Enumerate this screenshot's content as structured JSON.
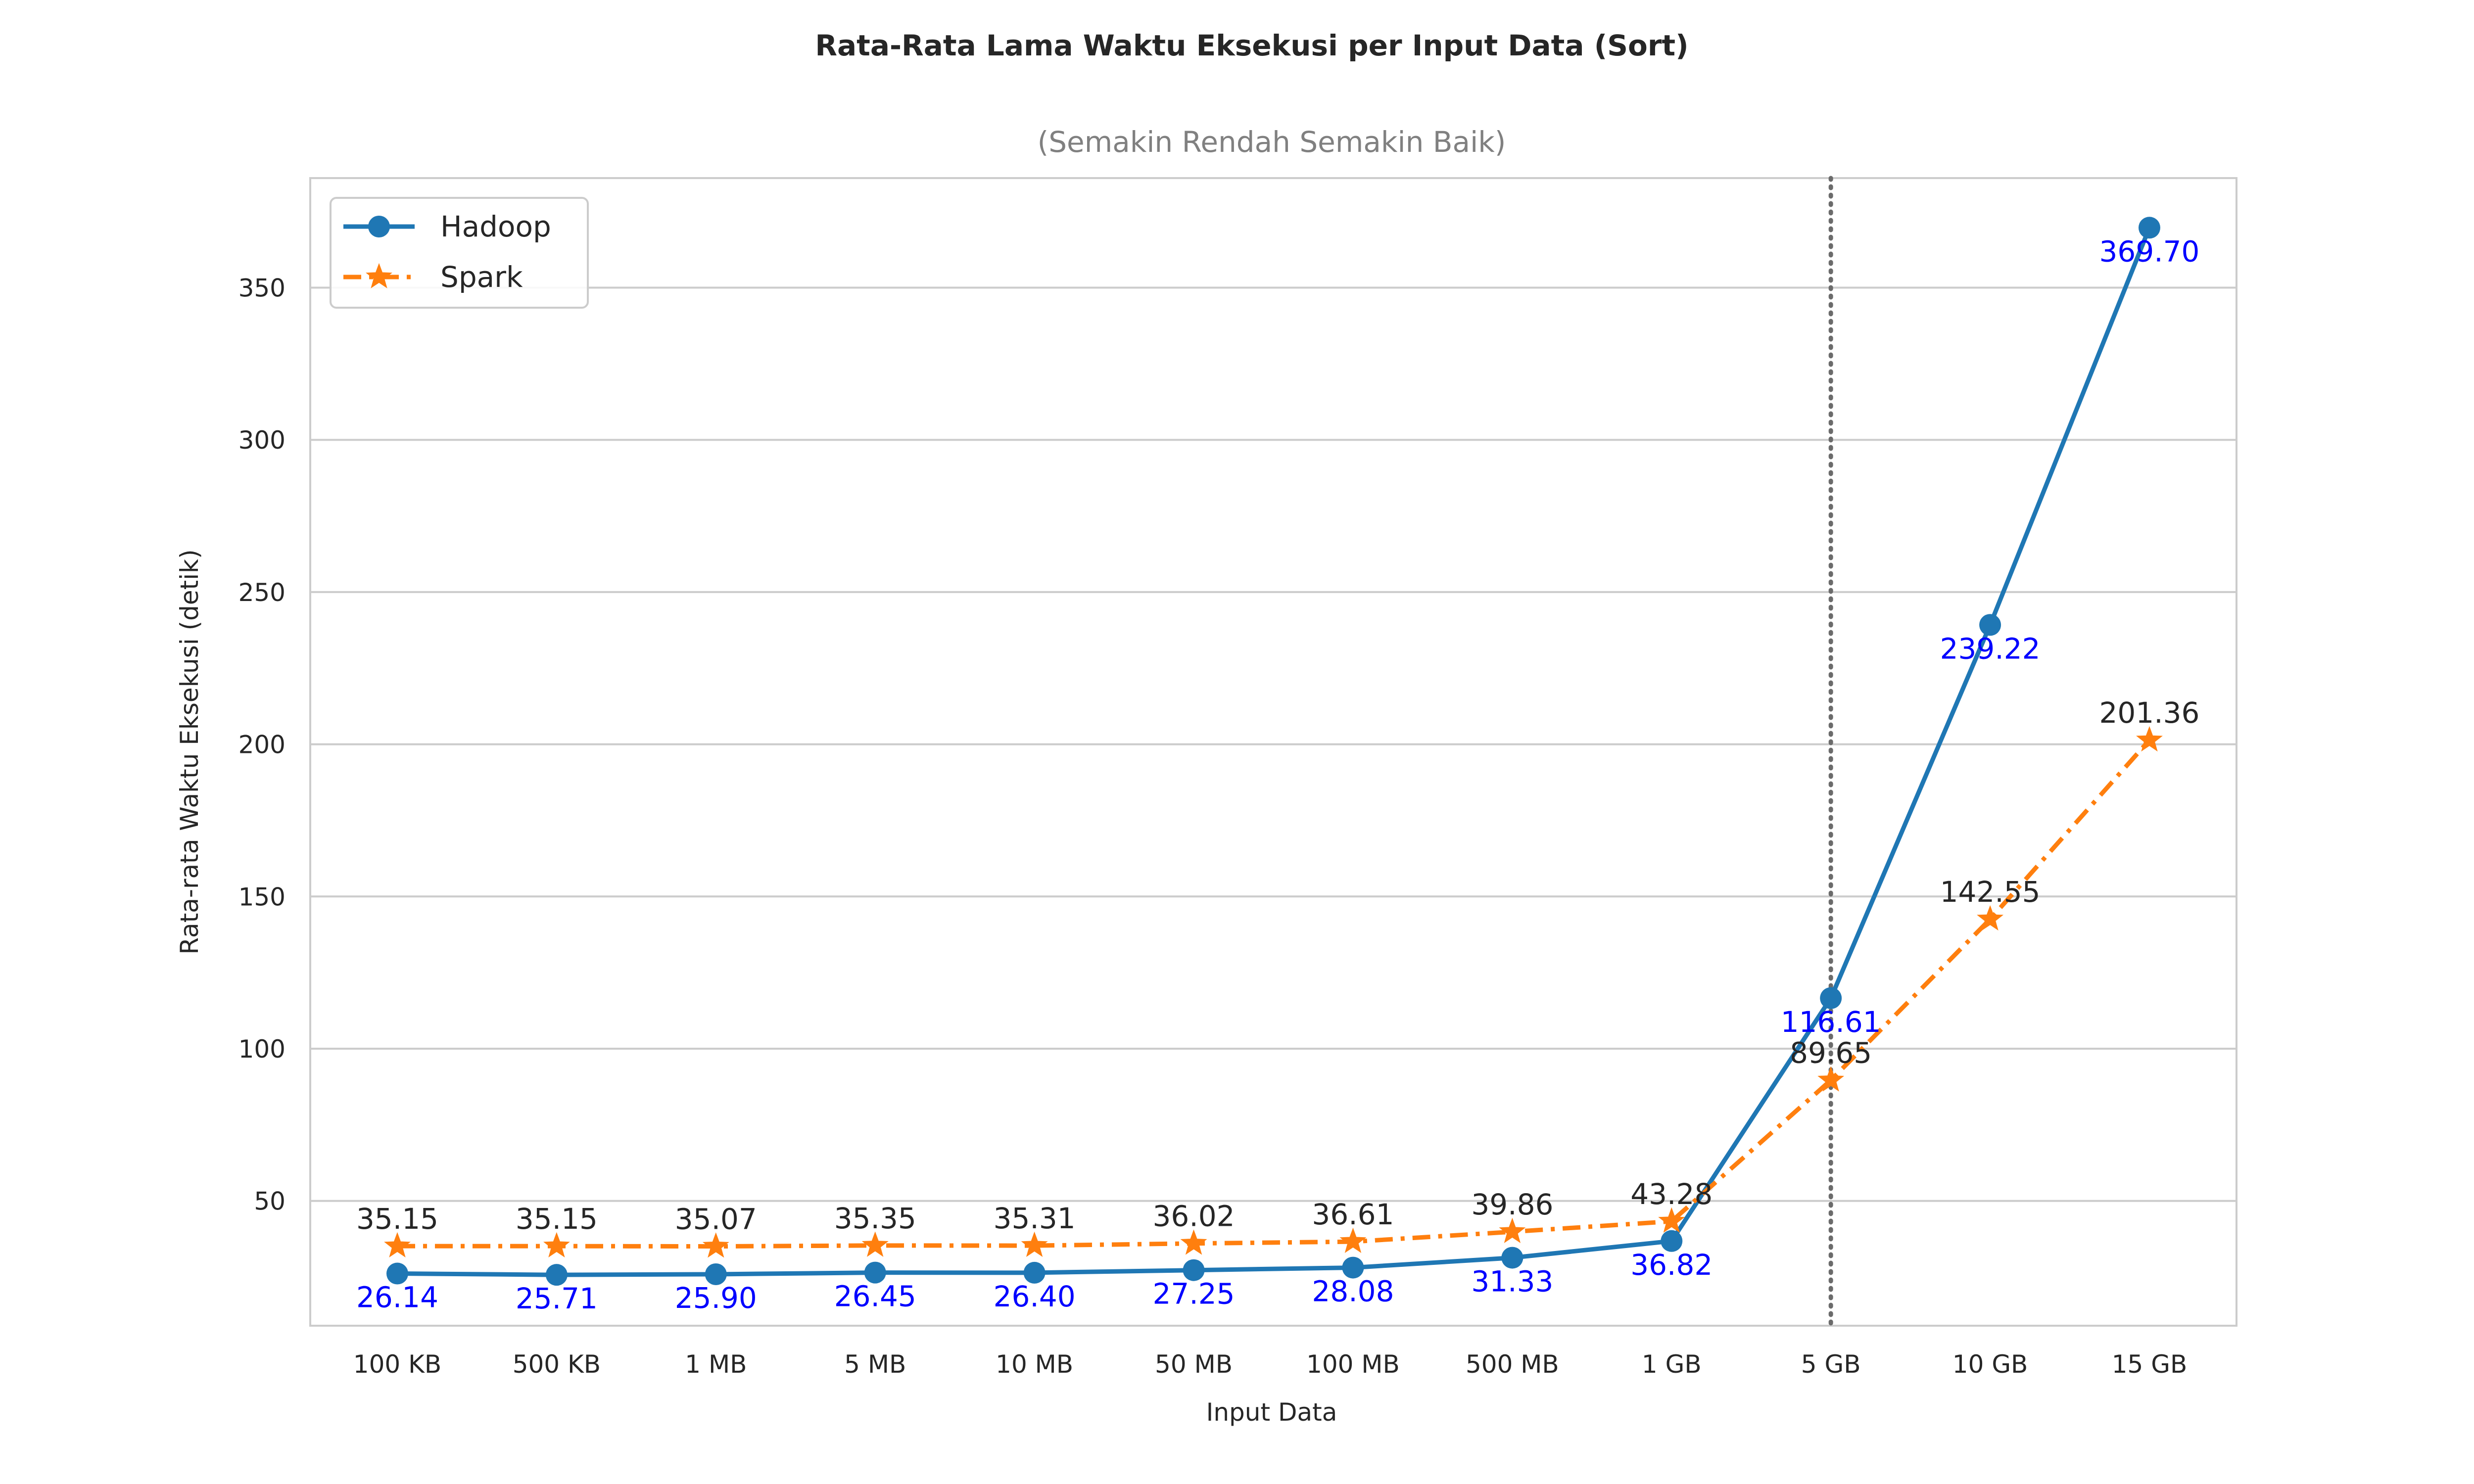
{
  "chart_data": {
    "type": "line",
    "title": "Rata-Rata Lama Waktu Eksekusi per Input Data (Sort)",
    "subtitle": "(Semakin Rendah Semakin Baik)",
    "xlabel": "Input Data",
    "ylabel": "Rata-rata Waktu Eksekusi (detik)",
    "categories": [
      "100 KB",
      "500 KB",
      "1 MB",
      "5 MB",
      "10 MB",
      "50 MB",
      "100 MB",
      "500 MB",
      "1 GB",
      "5 GB",
      "10 GB",
      "15 GB"
    ],
    "ylim": [
      9,
      386
    ],
    "yticks": [
      50,
      100,
      150,
      200,
      250,
      300,
      350
    ],
    "grid": "horizontal",
    "legend_position": "top-left",
    "vertical_reference_line_at": "5 GB",
    "series": [
      {
        "name": "Hadoop",
        "color": "#1f77b4",
        "label_color": "#0000ff",
        "marker": "circle",
        "line_style": "solid",
        "label_position": "below",
        "values": [
          26.14,
          25.71,
          25.9,
          26.45,
          26.4,
          27.25,
          28.08,
          31.33,
          36.82,
          116.61,
          239.22,
          369.7
        ],
        "labels": [
          "26.14",
          "25.71",
          "25.90",
          "26.45",
          "26.40",
          "27.25",
          "28.08",
          "31.33",
          "36.82",
          "116.61",
          "239.22",
          "369.70"
        ]
      },
      {
        "name": "Spark",
        "color": "#ff7f0e",
        "label_color": "#262626",
        "marker": "star",
        "line_style": "dash-dot",
        "label_position": "above",
        "values": [
          35.15,
          35.15,
          35.07,
          35.35,
          35.31,
          36.02,
          36.61,
          39.86,
          43.28,
          89.65,
          142.55,
          201.36
        ],
        "labels": [
          "35.15",
          "35.15",
          "35.07",
          "35.35",
          "35.31",
          "36.02",
          "36.61",
          "39.86",
          "43.28",
          "89.65",
          "142.55",
          "201.36"
        ]
      }
    ]
  }
}
